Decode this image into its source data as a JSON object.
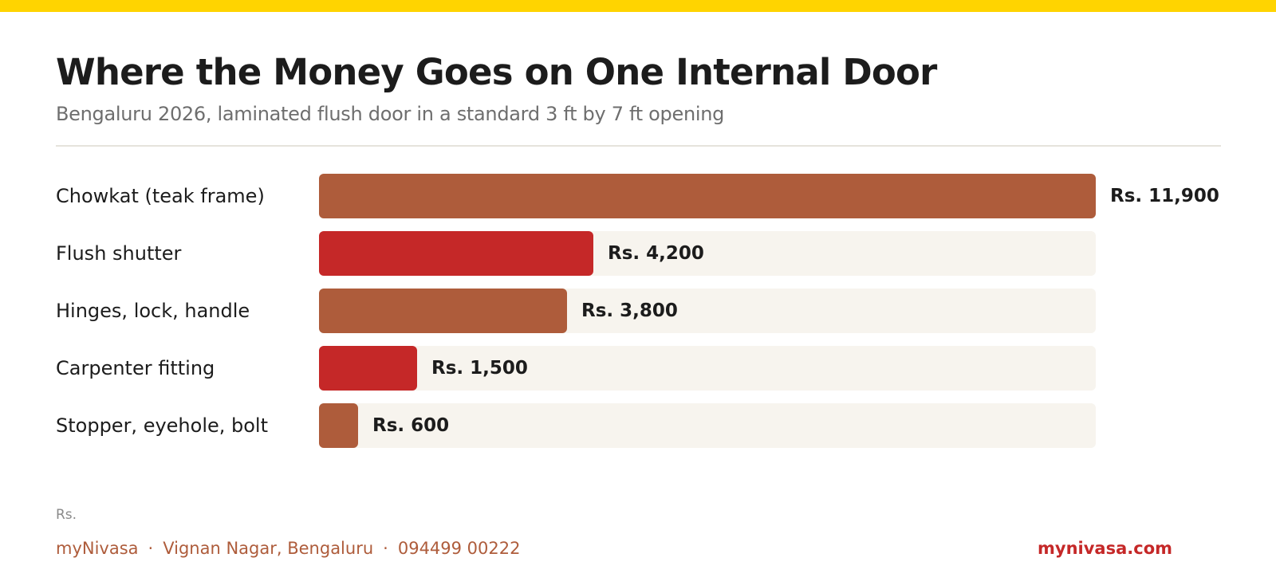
{
  "colors": {
    "top_bar": "#FFD400",
    "bar_primary": "#AE5C3B",
    "bar_accent": "#C52828",
    "track": "#F7F4EE",
    "footer_text": "#AE5C3B",
    "footer_link": "#C52828"
  },
  "chart_data": {
    "type": "bar",
    "orientation": "horizontal",
    "title": "Where the Money Goes on One Internal Door",
    "subtitle": "Bengaluru 2026, laminated flush door in a standard 3 ft by 7 ft opening",
    "categories": [
      "Chowkat (teak frame)",
      "Flush shutter",
      "Hinges, lock, handle",
      "Carpenter fitting",
      "Stopper, eyehole, bolt"
    ],
    "values": [
      11900,
      4200,
      3800,
      1500,
      600
    ],
    "value_labels": [
      "Rs. 11,900",
      "Rs. 4,200",
      "Rs. 3,800",
      "Rs. 1,500",
      "Rs. 600"
    ],
    "bar_colors": [
      "#AE5C3B",
      "#C52828",
      "#AE5C3B",
      "#C52828",
      "#AE5C3B"
    ],
    "xlim": [
      0,
      11900
    ],
    "unit": "Rs.",
    "grid": false
  },
  "footer": {
    "brand": "myNivasa",
    "location": "Vignan Nagar, Bengaluru",
    "phone": "094499 00222",
    "website": "mynivasa.com",
    "separator": "·"
  }
}
